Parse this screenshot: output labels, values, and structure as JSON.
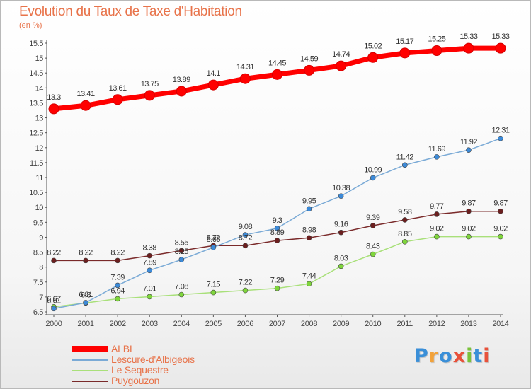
{
  "chart_data": {
    "type": "line",
    "title": "Evolution du Taux de Taxe d'Habitation",
    "ylabel": "(en %)",
    "x": [
      2000,
      2001,
      2002,
      2003,
      2004,
      2005,
      2006,
      2007,
      2008,
      2009,
      2010,
      2011,
      2012,
      2013,
      2014
    ],
    "ylim": [
      6.5,
      15.5
    ],
    "yticks": [
      6.5,
      7,
      7.5,
      8,
      8.5,
      9,
      9.5,
      10,
      10.5,
      11,
      11.5,
      12,
      12.5,
      13,
      13.5,
      14,
      14.5,
      15,
      15.5
    ],
    "grid": false,
    "legend_position": "bottom-left",
    "series": [
      {
        "name": "ALBI",
        "color": "#ff0000",
        "point_color": "#ff0000",
        "values": [
          13.3,
          13.41,
          13.61,
          13.75,
          13.89,
          14.1,
          14.31,
          14.45,
          14.59,
          14.74,
          15.02,
          15.17,
          15.25,
          15.33,
          15.33
        ],
        "labels": [
          "13.3",
          "13.41",
          "13.61",
          "13.75",
          "13.89",
          "14.1",
          "14.31",
          "14.45",
          "14.59",
          "14.74",
          "15.02",
          "15.17",
          "15.25",
          "15.33",
          "15.33"
        ]
      },
      {
        "name": "Lescure-d'Albigeois",
        "color": "#7aaad6",
        "point_color": "#3c8ad8",
        "values": [
          6.61,
          6.81,
          7.39,
          7.89,
          8.25,
          8.66,
          9.08,
          9.3,
          9.95,
          10.38,
          10.99,
          11.42,
          11.69,
          11.92,
          12.31
        ],
        "labels": [
          "6.61",
          "6.81",
          "7.39",
          "7.89",
          "8.25",
          "8.66",
          "9.08",
          "9.3",
          "9.95",
          "10.38",
          "10.99",
          "11.42",
          "11.69",
          "11.92",
          "12.31"
        ]
      },
      {
        "name": "Le Sequestre",
        "color": "#a9e07a",
        "point_color": "#7fd63c",
        "values": [
          6.67,
          6.8,
          6.94,
          7.01,
          7.08,
          7.15,
          7.22,
          7.29,
          7.44,
          8.03,
          8.43,
          8.85,
          9.02,
          9.02,
          9.02
        ],
        "labels": [
          "6.67",
          "6.8",
          "6.94",
          "7.01",
          "7.08",
          "7.15",
          "7.22",
          "7.29",
          "7.44",
          "8.03",
          "8.43",
          "8.85",
          "9.02",
          "9.02",
          "9.02"
        ]
      },
      {
        "name": "Puygouzon",
        "color": "#7a2a2a",
        "point_color": "#6b1f1f",
        "values": [
          8.22,
          8.22,
          8.22,
          8.38,
          8.55,
          8.72,
          8.72,
          8.89,
          8.98,
          9.16,
          9.39,
          9.58,
          9.77,
          9.87,
          9.87
        ],
        "labels": [
          "8.22",
          "8.22",
          "8.22",
          "8.38",
          "8.55",
          "8.72",
          "8.72",
          "8.89",
          "8.98",
          "9.16",
          "9.39",
          "9.58",
          "9.77",
          "9.87",
          "9.87"
        ]
      }
    ]
  },
  "logo": {
    "text": "Proxiti",
    "colors": [
      "#3a8fd8",
      "#f2a23a",
      "#3a8fd8",
      "#e8513a",
      "#7ac23a",
      "#3a8fd8",
      "#e8513a"
    ]
  }
}
